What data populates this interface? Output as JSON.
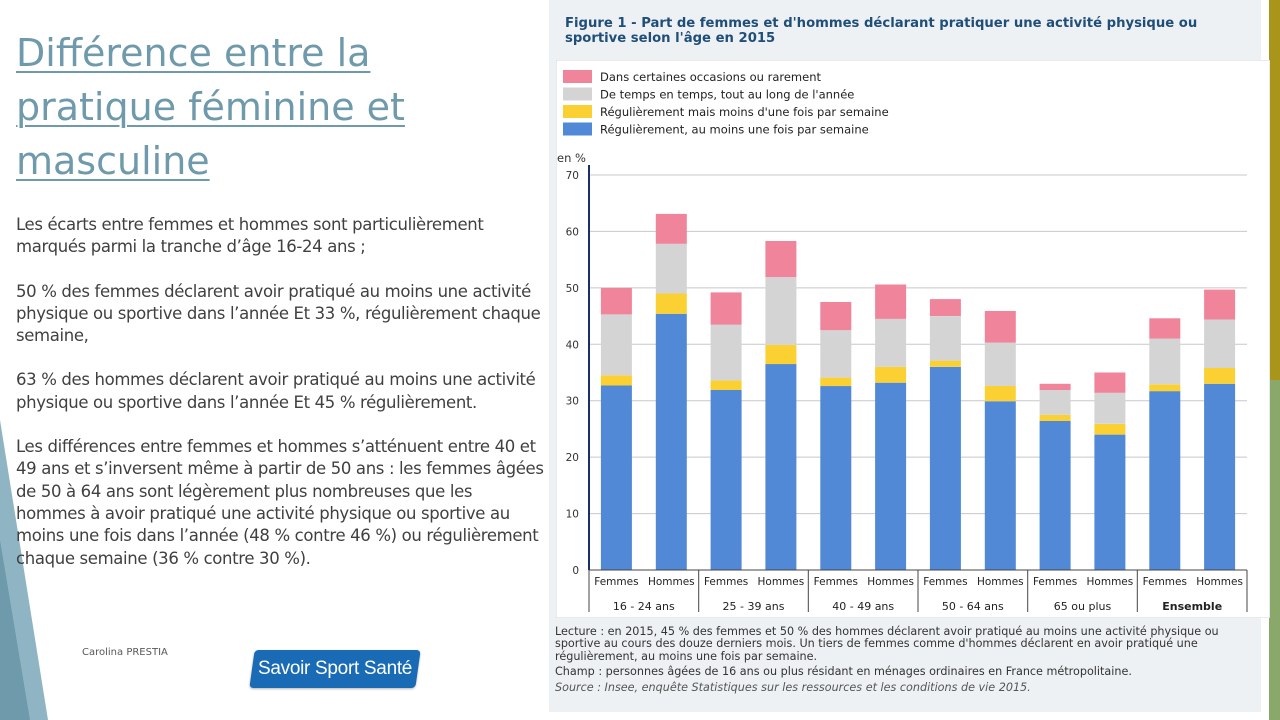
{
  "slide": {
    "title": "Différence entre la pratique féminine et masculine",
    "paragraphs": [
      "Les écarts entre femmes et hommes sont  particulièrement marqués parmi la tranche d’âge 16-24 ans ;",
      "50 % des femmes déclarent avoir pratiqué au moins une activité physique ou sportive dans l’année Et 33 %, régulièrement chaque semaine,",
      "63 % des hommes déclarent avoir pratiqué au moins une activité physique ou sportive dans l’année Et 45 % régulièrement.",
      "Les différences entre femmes et hommes s’atténuent entre 40 et 49 ans et s’inversent même à partir de 50 ans : les femmes âgées de 50 à 64 ans sont légèrement plus nombreuses que les hommes à avoir pratiqué une activité physique ou sportive au moins une fois dans l’année (48 % contre 46 %) ou régulièrement chaque semaine (36 % contre 30 %)."
    ],
    "author": "Carolina PRESTIA",
    "logo_text": "Savoir Sport Santé"
  },
  "figure": {
    "title": "Figure 1 - Part de femmes et d'hommes déclarant pratiquer une activité physique ou sportive selon l'âge en 2015",
    "lecture": "Lecture : en 2015, 45 % des femmes et 50 % des hommes déclarent avoir pratiqué au moins une activité physique ou sportive au cours des douze derniers mois. Un tiers de femmes comme d'hommes déclarent en avoir pratiqué une régulièrement, au moins une fois par semaine.",
    "champ": "Champ : personnes âgées de 16 ans ou plus résidant en ménages ordinaires en France métropolitaine.",
    "source": "Source : Insee, enquête Statistiques sur les ressources et les conditions de vie 2015."
  },
  "chart_data": {
    "type": "bar",
    "stacked": true,
    "title": "Figure 1 - Part de femmes et d'hommes déclarant pratiquer une activité physique ou sportive selon l'âge en 2015",
    "ylabel": "en %",
    "ylim": [
      0,
      70
    ],
    "yticks": [
      0,
      10,
      20,
      30,
      40,
      50,
      60,
      70
    ],
    "grid": true,
    "legend_position": "top-left",
    "categories": [
      "Femmes",
      "Hommes",
      "Femmes",
      "Hommes",
      "Femmes",
      "Hommes",
      "Femmes",
      "Hommes",
      "Femmes",
      "Hommes",
      "Femmes",
      "Hommes"
    ],
    "groups": [
      "16 - 24 ans",
      "25 - 39 ans",
      "40 - 49 ans",
      "50 - 64 ans",
      "65 ou plus",
      "Ensemble"
    ],
    "bold_groups": [
      "Ensemble"
    ],
    "series": [
      {
        "name": "Régulièrement, au moins une fois par semaine",
        "color": "#5289d6",
        "values": [
          32.7,
          45.4,
          31.9,
          36.5,
          32.6,
          33.2,
          36.0,
          29.9,
          26.4,
          24.0,
          31.7,
          33.0
        ]
      },
      {
        "name": "Régulièrement mais moins d'une fois par semaine",
        "color": "#fbd033",
        "values": [
          1.8,
          3.6,
          1.7,
          3.4,
          1.5,
          2.8,
          1.1,
          2.7,
          1.1,
          1.9,
          1.2,
          2.8
        ]
      },
      {
        "name": "De temps en temps, tout au long de l'année",
        "color": "#d4d4d4",
        "values": [
          10.8,
          8.8,
          9.9,
          12.0,
          8.4,
          8.5,
          7.9,
          7.7,
          4.4,
          5.5,
          8.1,
          8.6
        ]
      },
      {
        "name": "Dans certaines occasions ou rarement",
        "color": "#f0849b",
        "values": [
          4.7,
          5.3,
          5.7,
          6.4,
          5.0,
          6.1,
          3.0,
          5.6,
          1.1,
          3.6,
          3.6,
          5.3
        ]
      }
    ]
  }
}
